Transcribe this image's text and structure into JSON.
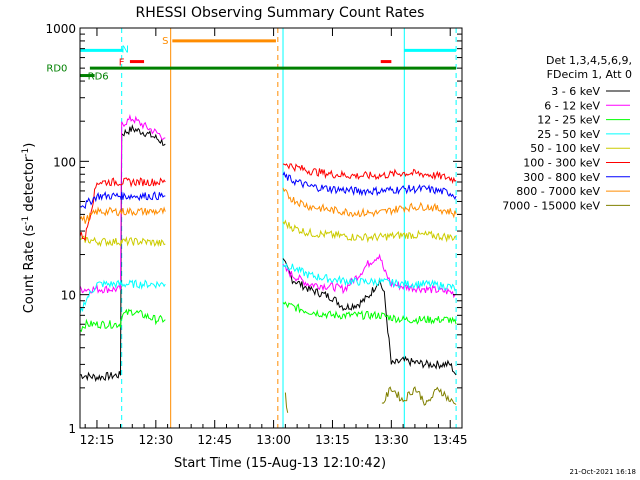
{
  "chart_data": {
    "type": "line",
    "title": "RHESSI Observing Summary Count Rates",
    "xlabel": "Start Time (15-Aug-13 12:10:42)",
    "ylabel_main": "Count Rate (s",
    "ylabel_sup1": "-1",
    "ylabel_mid": " detector",
    "ylabel_sup2": "-1",
    "ylabel_end": ")",
    "y_scale": "log",
    "ylim": [
      1,
      1000
    ],
    "xlim": [
      12.178,
      13.8
    ],
    "y_ticks": [
      {
        "value": 1,
        "label": "1"
      },
      {
        "value": 10,
        "label": "10"
      },
      {
        "value": 100,
        "label": "100"
      },
      {
        "value": 1000,
        "label": "1000"
      }
    ],
    "x_ticks": [
      {
        "value": 12.25,
        "label": "12:15"
      },
      {
        "value": 12.5,
        "label": "12:30"
      },
      {
        "value": 12.75,
        "label": "12:45"
      },
      {
        "value": 13.0,
        "label": "13:00"
      },
      {
        "value": 13.25,
        "label": "13:15"
      },
      {
        "value": 13.5,
        "label": "13:30"
      },
      {
        "value": 13.75,
        "label": "13:45"
      }
    ],
    "legend_header": [
      "Det 1,3,4,5,6,9,",
      "FDecim 1, Att 0"
    ],
    "legend_placement": "right",
    "series": [
      {
        "name": "3 - 6 keV",
        "color": "#000000",
        "segments": [
          {
            "x": [
              12.178,
              12.25,
              12.35,
              12.355,
              12.4,
              12.45,
              12.5,
              12.54
            ],
            "y": [
              2.5,
              2.4,
              2.5,
              160,
              175,
              165,
              150,
              135
            ]
          },
          {
            "x": [
              13.04,
              13.08,
              13.15,
              13.25,
              13.3,
              13.36,
              13.4,
              13.45,
              13.47,
              13.5,
              13.55,
              13.65,
              13.75,
              13.775
            ],
            "y": [
              18,
              13,
              11,
              9.5,
              8,
              8.5,
              9.5,
              13,
              10,
              3,
              3.2,
              3.0,
              3.0,
              2.5
            ]
          }
        ]
      },
      {
        "name": "6 - 12 keV",
        "color": "#ff00ff",
        "segments": [
          {
            "x": [
              12.178,
              12.25,
              12.35,
              12.355,
              12.4,
              12.45,
              12.5,
              12.54
            ],
            "y": [
              11,
              11,
              11,
              190,
              210,
              185,
              165,
              150
            ]
          },
          {
            "x": [
              13.04,
              13.08,
              13.15,
              13.25,
              13.3,
              13.36,
              13.4,
              13.45,
              13.47,
              13.5,
              13.55,
              13.65,
              13.75,
              13.775
            ],
            "y": [
              16,
              14,
              12,
              11.5,
              11,
              14,
              17,
              20,
              15,
              12,
              11.5,
              11,
              10.5,
              10
            ]
          }
        ]
      },
      {
        "name": "12 - 25 keV",
        "color": "#00ff00",
        "segments": [
          {
            "x": [
              12.178,
              12.2,
              12.25,
              12.35,
              12.355,
              12.4,
              12.45,
              12.5,
              12.54
            ],
            "y": [
              5.5,
              6.0,
              6.0,
              6.0,
              7.0,
              7.5,
              7.0,
              6.5,
              6.5
            ]
          },
          {
            "x": [
              13.04,
              13.15,
              13.25,
              13.35,
              13.45,
              13.55,
              13.65,
              13.75,
              13.775
            ],
            "y": [
              8.5,
              7.5,
              7.0,
              7.0,
              7.0,
              6.5,
              6.5,
              6.5,
              6.0
            ]
          }
        ]
      },
      {
        "name": "25 - 50 keV",
        "color": "#00ffff",
        "segments": [
          {
            "x": [
              12.178,
              12.2,
              12.25,
              12.35,
              12.355,
              12.4,
              12.45,
              12.5,
              12.54
            ],
            "y": [
              7.0,
              9.0,
              12,
              12,
              12,
              12,
              12,
              12,
              12
            ]
          },
          {
            "x": [
              13.04,
              13.08,
              13.15,
              13.25,
              13.35,
              13.45,
              13.55,
              13.65,
              13.75,
              13.775
            ],
            "y": [
              17,
              16,
              14,
              13,
              12.5,
              12.5,
              12,
              12,
              11.5,
              11
            ]
          }
        ]
      },
      {
        "name": "50 - 100 keV",
        "color": "#cccc00",
        "segments": [
          {
            "x": [
              12.178,
              12.2,
              12.25,
              12.35,
              12.355,
              12.45,
              12.54
            ],
            "y": [
              25,
              26,
              25,
              25,
              25,
              25,
              24
            ]
          },
          {
            "x": [
              13.04,
              13.08,
              13.15,
              13.25,
              13.35,
              13.45,
              13.55,
              13.65,
              13.75,
              13.775
            ],
            "y": [
              35,
              32,
              29,
              28,
              27,
              27,
              28,
              28,
              27,
              27
            ]
          }
        ]
      },
      {
        "name": "100 - 300 keV",
        "color": "#ff0000",
        "segments": [
          {
            "x": [
              12.178,
              12.2,
              12.25,
              12.35,
              12.355,
              12.45,
              12.54
            ],
            "y": [
              28,
              27,
              70,
              70,
              70,
              70,
              70
            ]
          },
          {
            "x": [
              13.04,
              13.08,
              13.15,
              13.25,
              13.35,
              13.45,
              13.55,
              13.65,
              13.75,
              13.775
            ],
            "y": [
              98,
              92,
              85,
              80,
              78,
              78,
              82,
              80,
              75,
              72
            ]
          }
        ]
      },
      {
        "name": "300 - 800 keV",
        "color": "#0000ff",
        "segments": [
          {
            "x": [
              12.178,
              12.2,
              12.25,
              12.35,
              12.355,
              12.45,
              12.54
            ],
            "y": [
              48,
              47,
              55,
              55,
              55,
              55,
              55
            ]
          },
          {
            "x": [
              13.04,
              13.08,
              13.15,
              13.25,
              13.35,
              13.45,
              13.55,
              13.65,
              13.75,
              13.775
            ],
            "y": [
              78,
              72,
              65,
              62,
              60,
              60,
              62,
              62,
              58,
              55
            ]
          }
        ]
      },
      {
        "name": "800 - 7000 keV",
        "color": "#ff8c00",
        "segments": [
          {
            "x": [
              12.178,
              12.2,
              12.25,
              12.35,
              12.355,
              12.45,
              12.54
            ],
            "y": [
              38,
              36,
              42,
              42,
              42,
              42,
              42
            ]
          },
          {
            "x": [
              13.04,
              13.08,
              13.15,
              13.25,
              13.35,
              13.45,
              13.55,
              13.65,
              13.75,
              13.775
            ],
            "y": [
              60,
              52,
              46,
              43,
              41,
              41,
              45,
              46,
              42,
              40
            ]
          }
        ]
      },
      {
        "name": "7000 - 15000 keV",
        "color": "#808000",
        "segments": [
          {
            "x": [
              13.05,
              13.06
            ],
            "y": [
              1.8,
              1.3
            ]
          },
          {
            "x": [
              13.46,
              13.5,
              13.55,
              13.6,
              13.65,
              13.7,
              13.75,
              13.775
            ],
            "y": [
              1.5,
              2.0,
              1.6,
              2.0,
              1.5,
              2.0,
              1.6,
              1.5
            ]
          }
        ]
      }
    ],
    "vlines": [
      {
        "x": 12.178,
        "color": "#00ffff",
        "dash": false
      },
      {
        "x": 12.355,
        "color": "#00ffff",
        "dash": true
      },
      {
        "x": 12.563,
        "color": "#ff8c00",
        "dash": false
      },
      {
        "x": 13.018,
        "color": "#ff8c00",
        "dash": true
      },
      {
        "x": 13.04,
        "color": "#00ffff",
        "dash": false
      },
      {
        "x": 13.555,
        "color": "#00ffff",
        "dash": false
      },
      {
        "x": 13.775,
        "color": "#00ffff",
        "dash": true
      }
    ],
    "bars": [
      {
        "x0": 12.178,
        "x1": 12.36,
        "y": 680,
        "color": "#00ffff",
        "label": "N",
        "label_x": 12.37,
        "label_y": 700,
        "label_color": "#00ffff"
      },
      {
        "x0": 12.39,
        "x1": 12.45,
        "y": 560,
        "color": "#ff0000",
        "label": "F",
        "label_x": 12.355,
        "label_y": 560,
        "label_color": "#ff0000"
      },
      {
        "x0": 12.57,
        "x1": 13.01,
        "y": 800,
        "color": "#ff8c00",
        "label": "S",
        "label_x": 12.54,
        "label_y": 810,
        "label_color": "#ff8c00"
      },
      {
        "x0": 13.455,
        "x1": 13.5,
        "y": 560,
        "color": "#ff0000",
        "label": "",
        "label_x": 0,
        "label_y": 0,
        "label_color": "#ff0000"
      },
      {
        "x0": 13.555,
        "x1": 13.775,
        "y": 680,
        "color": "#00ffff",
        "label": "",
        "label_x": 0,
        "label_y": 0,
        "label_color": "#00ffff"
      },
      {
        "x0": 12.22,
        "x1": 13.775,
        "y": 500,
        "color": "#008000",
        "label": "RD0",
        "label_x": 12.08,
        "label_y": 505,
        "label_color": "#008000"
      },
      {
        "x0": 12.178,
        "x1": 12.24,
        "y": 440,
        "color": "#008000",
        "label": "RD6",
        "label_x": 12.255,
        "label_y": 440,
        "label_color": "#008000"
      }
    ],
    "timestamp": "21-Oct-2021 16:18"
  }
}
